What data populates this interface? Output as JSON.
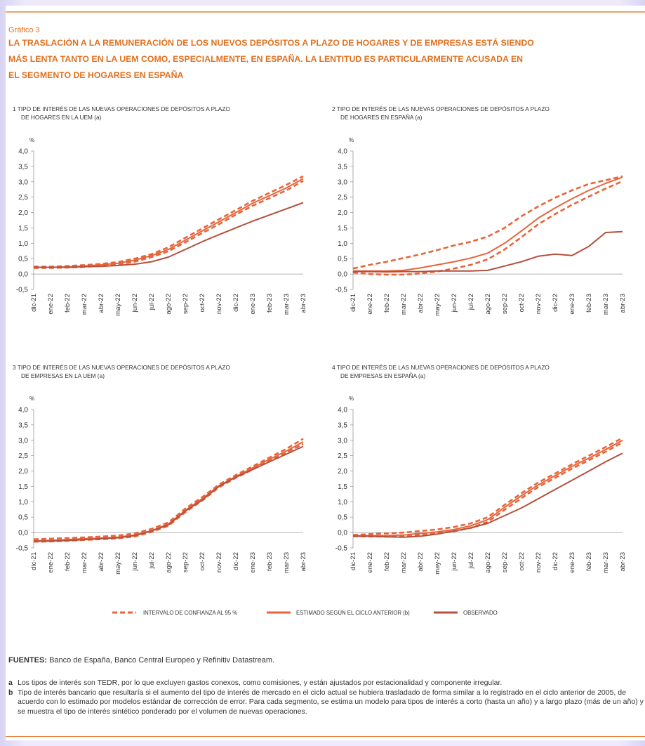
{
  "figure_label": "Gráfico 3",
  "title": [
    "LA TRASLACIÓN A LA REMUNERACIÓN DE LOS NUEVOS DEPÓSITOS A PLAZO DE HOGARES Y DE EMPRESAS ESTÁ SIENDO",
    "MÁS LENTA TANTO EN LA UEM COMO, ESPECIALMENTE, EN ESPAÑA. LA LENTITUD ES PARTICULARMENTE ACUSADA EN",
    "EL SEGMENTO DE HOGARES EN ESPAÑA"
  ],
  "legend": [
    {
      "name": "INTERVALO DE CONFIANZA AL 95 %",
      "color": "#e8643a",
      "style": "dashed"
    },
    {
      "name": "ESTIMADO SEGÚN EL CICLO ANTERIOR (b)",
      "color": "#e8643a",
      "style": "solid"
    },
    {
      "name": "OBSERVADO",
      "color": "#b4503c",
      "style": "solid"
    }
  ],
  "chart_data": [
    {
      "type": "line",
      "title": [
        "1  TIPO DE INTERÉS DE LAS NUEVAS OPERACIONES DE DEPÓSITOS A PLAZO",
        "DE HOGARES EN LA UEM (a)"
      ],
      "y_unit": "%",
      "categories": [
        "dic-21",
        "ene-22",
        "feb-22",
        "mar-22",
        "abr-22",
        "may-22",
        "jun-22",
        "jul-22",
        "ago-22",
        "sep-22",
        "oct-22",
        "nov-22",
        "dic-22",
        "ene-23",
        "feb-23",
        "mar-23",
        "abr-23"
      ],
      "ylim": [
        -0.5,
        4
      ],
      "yticks": [
        {
          "value": 4,
          "label": "4,0"
        },
        {
          "value": 3.5,
          "label": "3,5"
        },
        {
          "value": 3,
          "label": "3,0"
        },
        {
          "value": 2.5,
          "label": "2,5"
        },
        {
          "value": 2,
          "label": "2,0"
        },
        {
          "value": 1.5,
          "label": "1,5"
        },
        {
          "value": 1,
          "label": "1,0"
        },
        {
          "value": 0.5,
          "label": "0,5"
        },
        {
          "value": 0,
          "label": "0,0"
        },
        {
          "value": -0.5,
          "label": "-0,5"
        }
      ],
      "series": [
        {
          "lower": [
            0.2,
            0.2,
            0.21,
            0.23,
            0.27,
            0.31,
            0.4,
            0.55,
            0.74,
            1.03,
            1.33,
            1.62,
            1.93,
            2.22,
            2.47,
            2.72,
            3.03
          ],
          "upper": [
            0.24,
            0.24,
            0.26,
            0.29,
            0.33,
            0.39,
            0.5,
            0.65,
            0.87,
            1.18,
            1.48,
            1.78,
            2.08,
            2.38,
            2.64,
            2.9,
            3.18
          ]
        },
        {
          "values": [
            0.22,
            0.22,
            0.23,
            0.26,
            0.3,
            0.35,
            0.45,
            0.6,
            0.8,
            1.1,
            1.4,
            1.7,
            2.0,
            2.3,
            2.55,
            2.8,
            3.1
          ]
        },
        {
          "values": [
            0.22,
            0.22,
            0.22,
            0.24,
            0.25,
            0.28,
            0.32,
            0.4,
            0.55,
            0.8,
            1.05,
            1.28,
            1.5,
            1.72,
            1.92,
            2.12,
            2.32
          ]
        }
      ]
    },
    {
      "type": "line",
      "title": [
        "2  TIPO DE INTERÉS DE LAS NUEVAS OPERACIONES DE DEPÓSITOS A PLAZO",
        "DE HOGARES EN ESPAÑA (a)"
      ],
      "y_unit": "%",
      "categories": [
        "dic-21",
        "ene-22",
        "feb-22",
        "mar-22",
        "abr-22",
        "may-22",
        "jun-22",
        "jul-22",
        "ago-22",
        "sep-22",
        "oct-22",
        "nov-22",
        "dic-22",
        "ene-23",
        "feb-23",
        "mar-23",
        "abr-23"
      ],
      "ylim": [
        -0.5,
        4
      ],
      "yticks": [
        {
          "value": 4,
          "label": "4,0"
        },
        {
          "value": 3.5,
          "label": "3,5"
        },
        {
          "value": 3,
          "label": "3,0"
        },
        {
          "value": 2.5,
          "label": "2,5"
        },
        {
          "value": 2,
          "label": "2,0"
        },
        {
          "value": 1.5,
          "label": "1,5"
        },
        {
          "value": 1,
          "label": "1,0"
        },
        {
          "value": 0.5,
          "label": "0,5"
        },
        {
          "value": 0,
          "label": "0,0"
        },
        {
          "value": -0.5,
          "label": "-0,5"
        }
      ],
      "series": [
        {
          "lower": [
            0.05,
            0.0,
            -0.02,
            -0.02,
            0.02,
            0.08,
            0.18,
            0.3,
            0.48,
            0.8,
            1.2,
            1.62,
            1.95,
            2.25,
            2.52,
            2.78,
            3.02
          ],
          "upper": [
            0.18,
            0.3,
            0.4,
            0.52,
            0.64,
            0.78,
            0.93,
            1.05,
            1.22,
            1.5,
            1.88,
            2.2,
            2.48,
            2.72,
            2.93,
            3.05,
            3.18
          ]
        },
        {
          "values": [
            0.1,
            0.1,
            0.1,
            0.12,
            0.2,
            0.3,
            0.4,
            0.52,
            0.68,
            1.0,
            1.4,
            1.82,
            2.15,
            2.45,
            2.72,
            2.95,
            3.15
          ]
        },
        {
          "values": [
            0.08,
            0.08,
            0.07,
            0.08,
            0.08,
            0.1,
            0.1,
            0.1,
            0.12,
            0.26,
            0.4,
            0.58,
            0.65,
            0.6,
            0.9,
            1.35,
            1.38
          ]
        }
      ]
    },
    {
      "type": "line",
      "title": [
        "3  TIPO DE INTERÉS DE LAS NUEVAS OPERACIONES DE DEPÓSITOS A PLAZO",
        "DE EMPRESAS EN LA UEM (a)"
      ],
      "y_unit": "%",
      "categories": [
        "dic-21",
        "ene-22",
        "feb-22",
        "mar-22",
        "abr-22",
        "may-22",
        "jun-22",
        "jul-22",
        "ago-22",
        "sep-22",
        "oct-22",
        "nov-22",
        "dic-22",
        "ene-23",
        "feb-23",
        "mar-23",
        "abr-23"
      ],
      "ylim": [
        -0.5,
        4
      ],
      "yticks": [
        {
          "value": 4,
          "label": "4,0"
        },
        {
          "value": 3.5,
          "label": "3,5"
        },
        {
          "value": 3,
          "label": "3,0"
        },
        {
          "value": 2.5,
          "label": "2,5"
        },
        {
          "value": 2,
          "label": "2,0"
        },
        {
          "value": 1.5,
          "label": "1,5"
        },
        {
          "value": 1,
          "label": "1,0"
        },
        {
          "value": 0.5,
          "label": "0,5"
        },
        {
          "value": 0,
          "label": "0,0"
        },
        {
          "value": -0.5,
          "label": "-0,5"
        }
      ],
      "series": [
        {
          "lower": [
            -0.3,
            -0.29,
            -0.27,
            -0.24,
            -0.22,
            -0.19,
            -0.13,
            0.02,
            0.22,
            0.66,
            1.04,
            1.47,
            1.78,
            2.05,
            2.33,
            2.6,
            2.88
          ],
          "upper": [
            -0.22,
            -0.2,
            -0.18,
            -0.16,
            -0.13,
            -0.1,
            -0.03,
            0.12,
            0.33,
            0.78,
            1.15,
            1.56,
            1.87,
            2.15,
            2.44,
            2.72,
            3.05
          ]
        },
        {
          "values": [
            -0.27,
            -0.25,
            -0.23,
            -0.2,
            -0.18,
            -0.15,
            -0.08,
            0.06,
            0.28,
            0.72,
            1.1,
            1.52,
            1.82,
            2.1,
            2.38,
            2.65,
            2.95
          ]
        },
        {
          "values": [
            -0.28,
            -0.28,
            -0.26,
            -0.23,
            -0.2,
            -0.17,
            -0.1,
            0.05,
            0.25,
            0.7,
            1.05,
            1.5,
            1.8,
            2.05,
            2.3,
            2.55,
            2.8
          ]
        }
      ]
    },
    {
      "type": "line",
      "title": [
        "4  TIPO DE INTERÉS DE LAS NUEVAS OPERACIONES DE DEPÓSITOS A PLAZO",
        "DE EMPRESAS EN ESPAÑA (a)"
      ],
      "y_unit": "%",
      "categories": [
        "dic-21",
        "ene-22",
        "feb-22",
        "mar-22",
        "abr-22",
        "may-22",
        "jun-22",
        "jul-22",
        "ago-22",
        "sep-22",
        "oct-22",
        "nov-22",
        "dic-22",
        "ene-23",
        "feb-23",
        "mar-23",
        "abr-23"
      ],
      "ylim": [
        -0.5,
        4
      ],
      "yticks": [
        {
          "value": 4,
          "label": "4,0"
        },
        {
          "value": 3.5,
          "label": "3,5"
        },
        {
          "value": 3,
          "label": "3,0"
        },
        {
          "value": 2.5,
          "label": "2,5"
        },
        {
          "value": 2,
          "label": "2,0"
        },
        {
          "value": 1.5,
          "label": "1,5"
        },
        {
          "value": 1,
          "label": "1,0"
        },
        {
          "value": 0.5,
          "label": "0,5"
        },
        {
          "value": 0,
          "label": "0,0"
        },
        {
          "value": -0.5,
          "label": "-0,5"
        }
      ],
      "series": [
        {
          "lower": [
            -0.12,
            -0.13,
            -0.13,
            -0.12,
            -0.08,
            -0.03,
            0.04,
            0.15,
            0.35,
            0.74,
            1.12,
            1.48,
            1.78,
            2.08,
            2.35,
            2.63,
            2.93
          ],
          "upper": [
            -0.08,
            -0.05,
            -0.03,
            0.0,
            0.05,
            0.1,
            0.18,
            0.3,
            0.5,
            0.9,
            1.28,
            1.63,
            1.92,
            2.22,
            2.5,
            2.78,
            3.08
          ]
        },
        {
          "values": [
            -0.1,
            -0.1,
            -0.1,
            -0.08,
            -0.03,
            0.02,
            0.1,
            0.22,
            0.42,
            0.82,
            1.2,
            1.55,
            1.85,
            2.15,
            2.42,
            2.7,
            3.0
          ]
        },
        {
          "values": [
            -0.12,
            -0.12,
            -0.14,
            -0.15,
            -0.12,
            -0.05,
            0.05,
            0.15,
            0.3,
            0.55,
            0.8,
            1.1,
            1.4,
            1.7,
            2.0,
            2.3,
            2.58
          ]
        }
      ]
    }
  ],
  "sources_label": "FUENTES:",
  "sources": "Banco de España, Banco Central Europeo y Refinitiv Datastream.",
  "notes": [
    {
      "letter": "a",
      "text": "Los tipos de interés son TEDR, por lo que excluyen gastos conexos, como comisiones, y están ajustados por estacionalidad y componente irregular."
    },
    {
      "letter": "b",
      "text": "Tipo de interés bancario que resultaría si el aumento del tipo de interés de mercado en el ciclo actual se hubiera trasladado de forma similar a lo registrado en el ciclo anterior de 2005, de acuerdo con lo estimado por modelos estándar de corrección de error. Para cada segmento, se estima un modelo para tipos de interés a corto (hasta un año) y a largo plazo (más de un año) y se muestra el tipo de interés sintético ponderado por el volumen de nuevas operaciones."
    }
  ]
}
